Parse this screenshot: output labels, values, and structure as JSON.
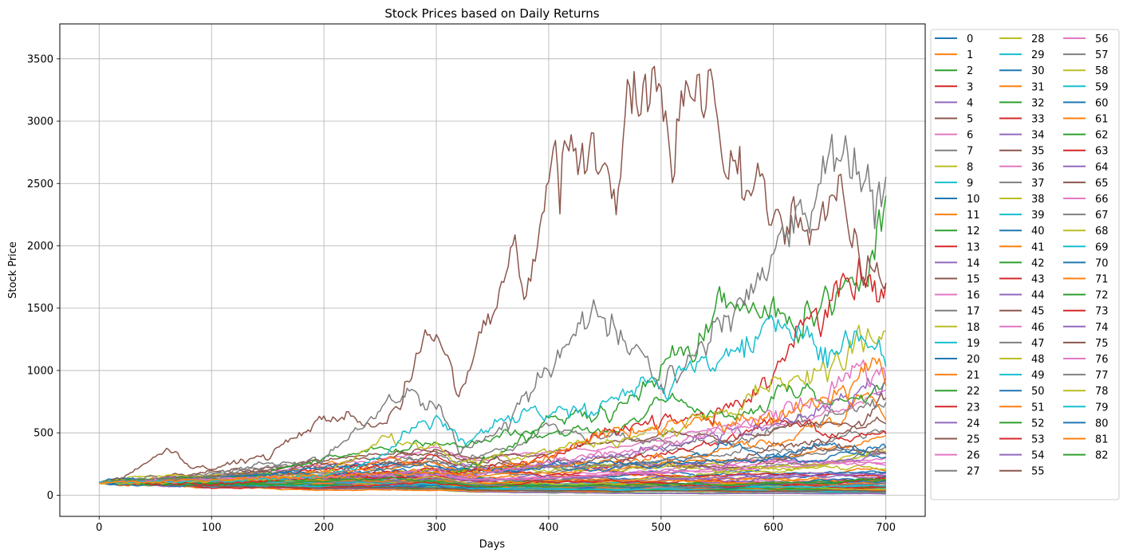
{
  "chart_data": {
    "type": "line",
    "title": "Stock Prices based on Daily Returns",
    "xlabel": "Days",
    "ylabel": "Stock Price",
    "xlim": [
      -35,
      735
    ],
    "ylim": [
      -170,
      3780
    ],
    "xticks": [
      0,
      100,
      200,
      300,
      400,
      500,
      600,
      700
    ],
    "yticks": [
      0,
      500,
      1000,
      1500,
      2000,
      2500,
      3000,
      3500
    ],
    "grid": true,
    "legend_position": "outside-right",
    "legend_columns": 3,
    "series_count": 83,
    "palette": [
      "#1f77b4",
      "#ff7f0e",
      "#2ca02c",
      "#d62728",
      "#9467bd",
      "#8c564b",
      "#e377c2",
      "#7f7f7f",
      "#bcbd22",
      "#17becf"
    ],
    "series_labels": [
      "0",
      "1",
      "2",
      "3",
      "4",
      "5",
      "6",
      "7",
      "8",
      "9",
      "10",
      "11",
      "12",
      "13",
      "14",
      "15",
      "16",
      "17",
      "18",
      "19",
      "20",
      "21",
      "22",
      "23",
      "24",
      "25",
      "26",
      "27",
      "28",
      "29",
      "30",
      "31",
      "32",
      "33",
      "34",
      "35",
      "36",
      "37",
      "38",
      "39",
      "40",
      "41",
      "42",
      "43",
      "44",
      "45",
      "46",
      "47",
      "48",
      "49",
      "50",
      "51",
      "52",
      "53",
      "54",
      "55",
      "56",
      "57",
      "58",
      "59",
      "60",
      "61",
      "62",
      "63",
      "64",
      "65",
      "66",
      "67",
      "68",
      "69",
      "70",
      "71",
      "72",
      "73",
      "74",
      "75",
      "76",
      "77",
      "78",
      "79",
      "80",
      "81",
      "82"
    ],
    "highlighted_series": [
      {
        "name": "35",
        "color": "#8c564b",
        "points": [
          [
            0,
            100
          ],
          [
            20,
            140
          ],
          [
            40,
            250
          ],
          [
            60,
            360
          ],
          [
            80,
            230
          ],
          [
            100,
            220
          ],
          [
            150,
            320
          ],
          [
            200,
            600
          ],
          [
            250,
            560
          ],
          [
            270,
            750
          ],
          [
            290,
            1200
          ],
          [
            310,
            1050
          ],
          [
            320,
            800
          ],
          [
            340,
            1300
          ],
          [
            360,
            1700
          ],
          [
            370,
            2000
          ],
          [
            380,
            1550
          ],
          [
            400,
            2400
          ],
          [
            420,
            2950
          ],
          [
            440,
            2750
          ],
          [
            460,
            2200
          ],
          [
            470,
            3100
          ],
          [
            490,
            3300
          ],
          [
            500,
            3450
          ],
          [
            510,
            2500
          ],
          [
            520,
            3200
          ],
          [
            535,
            3600
          ],
          [
            560,
            2600
          ],
          [
            580,
            2500
          ],
          [
            600,
            2200
          ],
          [
            620,
            2300
          ],
          [
            640,
            2150
          ],
          [
            660,
            2400
          ],
          [
            680,
            1900
          ],
          [
            690,
            1650
          ],
          [
            700,
            1850
          ]
        ]
      },
      {
        "name": "37",
        "color": "#7f7f7f",
        "points": [
          [
            0,
            100
          ],
          [
            100,
            150
          ],
          [
            200,
            300
          ],
          [
            270,
            800
          ],
          [
            300,
            750
          ],
          [
            320,
            350
          ],
          [
            360,
            550
          ],
          [
            400,
            1000
          ],
          [
            440,
            1500
          ],
          [
            460,
            1300
          ],
          [
            480,
            1150
          ],
          [
            500,
            900
          ],
          [
            520,
            1000
          ],
          [
            540,
            1250
          ],
          [
            560,
            1500
          ],
          [
            580,
            1700
          ],
          [
            600,
            1900
          ],
          [
            620,
            2200
          ],
          [
            640,
            2400
          ],
          [
            660,
            2800
          ],
          [
            670,
            2700
          ],
          [
            680,
            2550
          ],
          [
            690,
            2400
          ],
          [
            700,
            2600
          ]
        ]
      },
      {
        "name": "32",
        "color": "#2ca02c",
        "points": [
          [
            0,
            100
          ],
          [
            100,
            80
          ],
          [
            200,
            130
          ],
          [
            300,
            200
          ],
          [
            320,
            180
          ],
          [
            350,
            300
          ],
          [
            400,
            600
          ],
          [
            450,
            650
          ],
          [
            480,
            800
          ],
          [
            520,
            1150
          ],
          [
            560,
            1600
          ],
          [
            580,
            1450
          ],
          [
            600,
            1500
          ],
          [
            640,
            1400
          ],
          [
            660,
            1600
          ],
          [
            680,
            1700
          ],
          [
            690,
            2000
          ],
          [
            700,
            2500
          ]
        ]
      },
      {
        "name": "33",
        "color": "#d62728",
        "points": [
          [
            0,
            100
          ],
          [
            100,
            90
          ],
          [
            200,
            150
          ],
          [
            300,
            200
          ],
          [
            320,
            180
          ],
          [
            400,
            300
          ],
          [
            450,
            500
          ],
          [
            500,
            600
          ],
          [
            550,
            700
          ],
          [
            600,
            900
          ],
          [
            620,
            1300
          ],
          [
            640,
            1400
          ],
          [
            660,
            1750
          ],
          [
            680,
            1800
          ],
          [
            700,
            1850
          ]
        ]
      },
      {
        "name": "79",
        "color": "#17becf",
        "points": [
          [
            0,
            100
          ],
          [
            100,
            110
          ],
          [
            200,
            150
          ],
          [
            250,
            300
          ],
          [
            280,
            550
          ],
          [
            300,
            620
          ],
          [
            320,
            450
          ],
          [
            360,
            600
          ],
          [
            400,
            650
          ],
          [
            450,
            700
          ],
          [
            500,
            900
          ],
          [
            550,
            1050
          ],
          [
            580,
            1200
          ],
          [
            600,
            1350
          ],
          [
            620,
            1300
          ],
          [
            650,
            1200
          ],
          [
            680,
            1250
          ],
          [
            700,
            1100
          ]
        ]
      },
      {
        "name": "78",
        "color": "#bcbd22",
        "points": [
          [
            0,
            100
          ],
          [
            100,
            110
          ],
          [
            200,
            160
          ],
          [
            250,
            450
          ],
          [
            300,
            400
          ],
          [
            320,
            250
          ],
          [
            400,
            350
          ],
          [
            500,
            500
          ],
          [
            550,
            650
          ],
          [
            600,
            900
          ],
          [
            640,
            1000
          ],
          [
            660,
            1050
          ],
          [
            680,
            1250
          ],
          [
            700,
            1350
          ]
        ]
      },
      {
        "name": "76",
        "color": "#e377c2",
        "points": [
          [
            0,
            100
          ],
          [
            200,
            150
          ],
          [
            300,
            200
          ],
          [
            320,
            150
          ],
          [
            400,
            250
          ],
          [
            500,
            400
          ],
          [
            600,
            650
          ],
          [
            650,
            800
          ],
          [
            670,
            1000
          ],
          [
            690,
            950
          ],
          [
            700,
            950
          ]
        ]
      },
      {
        "name": "74",
        "color": "#9467bd",
        "points": [
          [
            0,
            100
          ],
          [
            200,
            140
          ],
          [
            300,
            180
          ],
          [
            320,
            150
          ],
          [
            400,
            250
          ],
          [
            500,
            380
          ],
          [
            600,
            550
          ],
          [
            650,
            750
          ],
          [
            690,
            900
          ],
          [
            700,
            950
          ]
        ]
      },
      {
        "name": "81",
        "color": "#ff7f0e",
        "points": [
          [
            0,
            100
          ],
          [
            200,
            150
          ],
          [
            300,
            190
          ],
          [
            320,
            160
          ],
          [
            400,
            300
          ],
          [
            450,
            520
          ],
          [
            500,
            550
          ],
          [
            550,
            600
          ],
          [
            600,
            650
          ],
          [
            650,
            800
          ],
          [
            690,
            1050
          ],
          [
            700,
            850
          ]
        ]
      }
    ]
  }
}
